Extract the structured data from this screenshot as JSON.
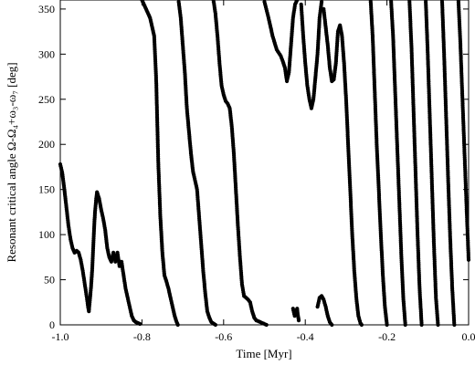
{
  "chart_data": {
    "type": "scatter",
    "xlabel": "Time [Myr]",
    "ylabel": "Resonant critical angle Ω-Ω₄+ω₃-ω₇ [deg]",
    "xlim": [
      -1.0,
      0.0
    ],
    "ylim": [
      0,
      360
    ],
    "x_ticks": [
      "-1.0",
      "-0.8",
      "-0.6",
      "-0.4",
      "-0.2",
      "0.0"
    ],
    "y_ticks": [
      "0",
      "50",
      "100",
      "150",
      "200",
      "250",
      "300",
      "350"
    ],
    "grid": false,
    "marker_color": "#000000",
    "series": [
      {
        "points": [
          [
            -1.0,
            178
          ],
          [
            -0.995,
            168
          ],
          [
            -0.99,
            150
          ],
          [
            -0.985,
            130
          ],
          [
            -0.98,
            110
          ],
          [
            -0.975,
            95
          ],
          [
            -0.97,
            85
          ],
          [
            -0.965,
            80
          ],
          [
            -0.96,
            82
          ],
          [
            -0.955,
            80
          ],
          [
            -0.95,
            72
          ],
          [
            -0.945,
            60
          ],
          [
            -0.94,
            45
          ],
          [
            -0.935,
            30
          ],
          [
            -0.932,
            20
          ],
          [
            -0.93,
            15
          ],
          [
            -0.928,
            25
          ],
          [
            -0.925,
            40
          ],
          [
            -0.922,
            60
          ],
          [
            -0.92,
            80
          ],
          [
            -0.918,
            100
          ],
          [
            -0.915,
            125
          ],
          [
            -0.912,
            140
          ],
          [
            -0.91,
            147
          ],
          [
            -0.905,
            140
          ],
          [
            -0.9,
            128
          ],
          [
            -0.895,
            118
          ],
          [
            -0.89,
            105
          ],
          [
            -0.885,
            85
          ],
          [
            -0.88,
            75
          ],
          [
            -0.875,
            70
          ],
          [
            -0.87,
            80
          ],
          [
            -0.865,
            70
          ],
          [
            -0.86,
            80
          ],
          [
            -0.855,
            65
          ],
          [
            -0.85,
            70
          ],
          [
            -0.845,
            55
          ],
          [
            -0.84,
            40
          ],
          [
            -0.835,
            30
          ],
          [
            -0.83,
            20
          ],
          [
            -0.825,
            10
          ],
          [
            -0.82,
            5
          ],
          [
            -0.815,
            3
          ],
          [
            -0.81,
            2
          ],
          [
            -0.805,
            1
          ]
        ]
      },
      {
        "points": [
          [
            -0.8,
            360
          ],
          [
            -0.795,
            355
          ],
          [
            -0.79,
            350
          ],
          [
            -0.785,
            345
          ],
          [
            -0.78,
            340
          ],
          [
            -0.775,
            330
          ],
          [
            -0.77,
            320
          ],
          [
            -0.765,
            270
          ],
          [
            -0.76,
            180
          ],
          [
            -0.755,
            120
          ],
          [
            -0.75,
            80
          ],
          [
            -0.745,
            55
          ],
          [
            -0.74,
            48
          ],
          [
            -0.735,
            40
          ],
          [
            -0.73,
            30
          ],
          [
            -0.725,
            20
          ],
          [
            -0.72,
            10
          ],
          [
            -0.715,
            3
          ],
          [
            -0.712,
            0
          ]
        ]
      },
      {
        "points": [
          [
            -0.71,
            358
          ],
          [
            -0.705,
            340
          ],
          [
            -0.7,
            310
          ],
          [
            -0.695,
            280
          ],
          [
            -0.69,
            240
          ],
          [
            -0.685,
            215
          ],
          [
            -0.68,
            190
          ],
          [
            -0.675,
            170
          ],
          [
            -0.67,
            160
          ],
          [
            -0.665,
            150
          ],
          [
            -0.66,
            120
          ],
          [
            -0.655,
            90
          ],
          [
            -0.65,
            60
          ],
          [
            -0.645,
            35
          ],
          [
            -0.64,
            15
          ],
          [
            -0.635,
            8
          ],
          [
            -0.63,
            3
          ],
          [
            -0.62,
            0
          ]
        ]
      },
      {
        "points": [
          [
            -0.625,
            360
          ],
          [
            -0.62,
            345
          ],
          [
            -0.615,
            320
          ],
          [
            -0.61,
            290
          ],
          [
            -0.605,
            265
          ],
          [
            -0.6,
            255
          ],
          [
            -0.595,
            248
          ],
          [
            -0.59,
            245
          ],
          [
            -0.585,
            240
          ],
          [
            -0.58,
            220
          ],
          [
            -0.575,
            190
          ],
          [
            -0.57,
            150
          ],
          [
            -0.565,
            110
          ],
          [
            -0.56,
            75
          ],
          [
            -0.555,
            45
          ],
          [
            -0.55,
            32
          ],
          [
            -0.545,
            30
          ],
          [
            -0.54,
            28
          ],
          [
            -0.535,
            25
          ],
          [
            -0.53,
            15
          ],
          [
            -0.525,
            8
          ],
          [
            -0.52,
            5
          ],
          [
            -0.51,
            3
          ],
          [
            -0.495,
            0
          ]
        ]
      },
      {
        "points": [
          [
            -0.5,
            358
          ],
          [
            -0.49,
            340
          ],
          [
            -0.48,
            320
          ],
          [
            -0.47,
            305
          ],
          [
            -0.46,
            298
          ],
          [
            -0.455,
            292
          ],
          [
            -0.45,
            285
          ],
          [
            -0.445,
            270
          ],
          [
            -0.44,
            280
          ],
          [
            -0.435,
            310
          ],
          [
            -0.43,
            340
          ],
          [
            -0.425,
            355
          ],
          [
            -0.42,
            360
          ]
        ]
      },
      {
        "points": [
          [
            -0.43,
            18
          ],
          [
            -0.428,
            14
          ],
          [
            -0.426,
            10
          ],
          [
            -0.424,
            12
          ],
          [
            -0.422,
            15
          ],
          [
            -0.42,
            18
          ],
          [
            -0.418,
            10
          ],
          [
            -0.416,
            5
          ]
        ]
      },
      {
        "points": [
          [
            -0.41,
            355
          ],
          [
            -0.405,
            320
          ],
          [
            -0.4,
            290
          ],
          [
            -0.395,
            265
          ],
          [
            -0.39,
            250
          ],
          [
            -0.385,
            240
          ],
          [
            -0.38,
            250
          ],
          [
            -0.375,
            275
          ],
          [
            -0.37,
            300
          ],
          [
            -0.365,
            340
          ],
          [
            -0.36,
            358
          ]
        ]
      },
      {
        "points": [
          [
            -0.37,
            20
          ],
          [
            -0.365,
            30
          ],
          [
            -0.36,
            32
          ],
          [
            -0.355,
            28
          ],
          [
            -0.35,
            20
          ],
          [
            -0.345,
            10
          ],
          [
            -0.34,
            3
          ],
          [
            -0.335,
            0
          ]
        ]
      },
      {
        "points": [
          [
            -0.355,
            350
          ],
          [
            -0.35,
            330
          ],
          [
            -0.345,
            310
          ],
          [
            -0.34,
            285
          ],
          [
            -0.335,
            270
          ],
          [
            -0.33,
            272
          ],
          [
            -0.325,
            290
          ],
          [
            -0.32,
            325
          ],
          [
            -0.315,
            332
          ],
          [
            -0.31,
            320
          ],
          [
            -0.305,
            290
          ],
          [
            -0.3,
            250
          ],
          [
            -0.295,
            200
          ],
          [
            -0.29,
            150
          ],
          [
            -0.285,
            100
          ],
          [
            -0.28,
            60
          ],
          [
            -0.275,
            30
          ],
          [
            -0.27,
            10
          ],
          [
            -0.265,
            2
          ],
          [
            -0.262,
            0
          ]
        ]
      },
      {
        "points": [
          [
            -0.24,
            360
          ],
          [
            -0.235,
            320
          ],
          [
            -0.23,
            260
          ],
          [
            -0.225,
            200
          ],
          [
            -0.22,
            150
          ],
          [
            -0.215,
            100
          ],
          [
            -0.21,
            55
          ],
          [
            -0.205,
            20
          ],
          [
            -0.2,
            0
          ]
        ]
      },
      {
        "points": [
          [
            -0.19,
            360
          ],
          [
            -0.185,
            320
          ],
          [
            -0.18,
            260
          ],
          [
            -0.175,
            200
          ],
          [
            -0.17,
            140
          ],
          [
            -0.165,
            80
          ],
          [
            -0.16,
            30
          ],
          [
            -0.155,
            0
          ]
        ]
      },
      {
        "points": [
          [
            -0.145,
            360
          ],
          [
            -0.14,
            310
          ],
          [
            -0.135,
            240
          ],
          [
            -0.13,
            170
          ],
          [
            -0.125,
            100
          ],
          [
            -0.12,
            40
          ],
          [
            -0.115,
            0
          ]
        ]
      },
      {
        "points": [
          [
            -0.105,
            360
          ],
          [
            -0.1,
            300
          ],
          [
            -0.095,
            230
          ],
          [
            -0.09,
            160
          ],
          [
            -0.085,
            90
          ],
          [
            -0.08,
            30
          ],
          [
            -0.075,
            0
          ]
        ]
      },
      {
        "points": [
          [
            -0.065,
            360
          ],
          [
            -0.06,
            300
          ],
          [
            -0.055,
            230
          ],
          [
            -0.05,
            160
          ],
          [
            -0.045,
            95
          ],
          [
            -0.04,
            40
          ],
          [
            -0.035,
            0
          ]
        ]
      },
      {
        "points": [
          [
            -0.025,
            360
          ],
          [
            -0.02,
            310
          ],
          [
            -0.015,
            250
          ],
          [
            -0.01,
            190
          ],
          [
            -0.005,
            130
          ],
          [
            0.0,
            72
          ]
        ]
      }
    ]
  }
}
